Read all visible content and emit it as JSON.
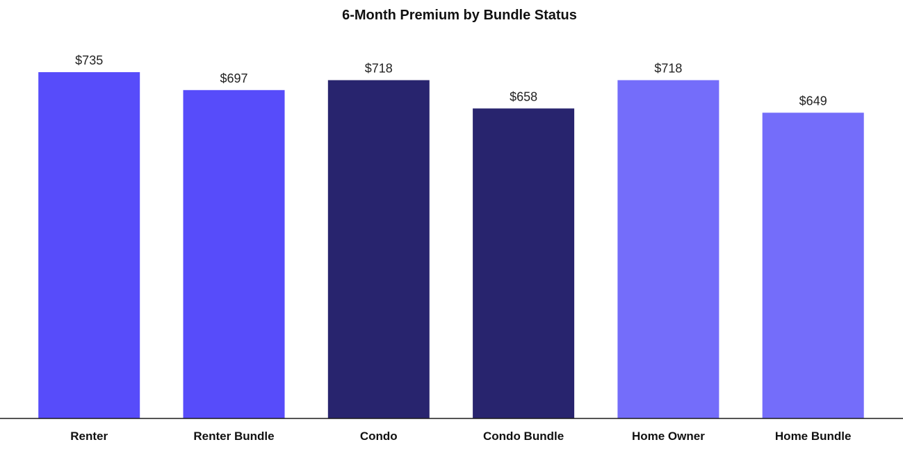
{
  "chart_data": {
    "type": "bar",
    "title": "6-Month Premium by Bundle Status",
    "categories": [
      "Renter",
      "Renter Bundle",
      "Condo",
      "Condo Bundle",
      "Home Owner",
      "Home Bundle"
    ],
    "values": [
      735,
      697,
      718,
      658,
      718,
      649
    ],
    "value_labels": [
      "$735",
      "$697",
      "$718",
      "$658",
      "$718",
      "$649"
    ],
    "bar_colors": [
      "#574cfa",
      "#574cfa",
      "#28246e",
      "#28246e",
      "#746dfa",
      "#746dfa"
    ],
    "ylim": [
      0,
      735
    ],
    "xlabel": "",
    "ylabel": "",
    "grid": false,
    "legend": "none"
  }
}
